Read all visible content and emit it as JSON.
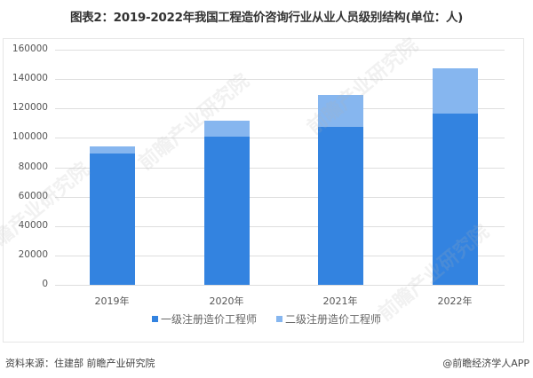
{
  "title": "图表2：2019-2022年我国工程造价咨询行业从业人员级别结构(单位：人)",
  "chart_data": {
    "type": "bar",
    "stacked": true,
    "title": "图表2：2019-2022年我国工程造价咨询行业从业人员级别结构(单位：人)",
    "xlabel": "",
    "ylabel": "",
    "categories": [
      "2019年",
      "2020年",
      "2021年",
      "2022年"
    ],
    "series": [
      {
        "name": "一级注册造价工程师",
        "color": "#3383e0",
        "values": [
          89400,
          100800,
          107500,
          116500
        ]
      },
      {
        "name": "二级注册造价工程师",
        "color": "#86b6ef",
        "values": [
          4800,
          10900,
          21700,
          30800
        ]
      }
    ],
    "ylim": [
      0,
      160000
    ],
    "yticks": [
      "0",
      "20000",
      "40000",
      "60000",
      "80000",
      "100000",
      "120000",
      "140000",
      "160000"
    ],
    "grid": true,
    "legend_position": "bottom"
  },
  "legend": [
    {
      "label": "一级注册造价工程师",
      "color": "#3383e0"
    },
    {
      "label": "二级注册造价工程师",
      "color": "#86b6ef"
    }
  ],
  "footer": {
    "source": "资料来源：住建部 前瞻产业研究院",
    "credit": "@前瞻经济学人APP"
  },
  "watermark": "前瞻产业研究院"
}
